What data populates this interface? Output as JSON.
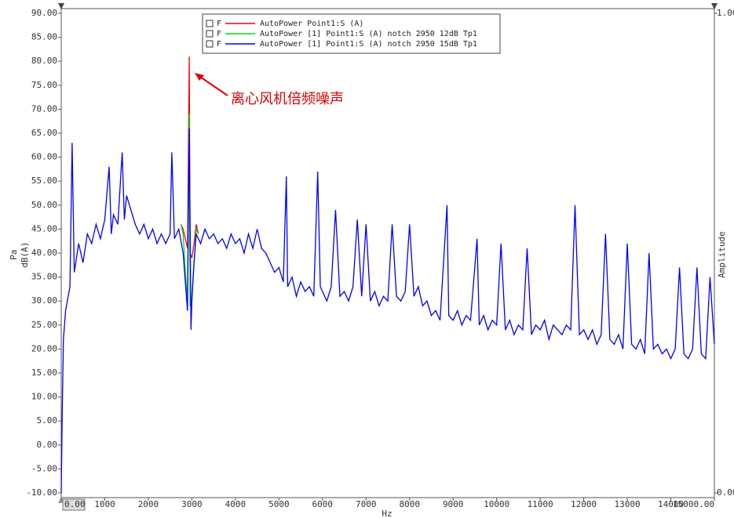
{
  "chart_data": {
    "type": "line",
    "x_label": "Hz",
    "y_label_unit": "Pa",
    "y_label": "dB(A)",
    "y2_label": "Amplitude",
    "annotation": "离心风机倍频噪声",
    "legend_flag": "F",
    "xlim": [
      0,
      15000
    ],
    "xticks": [
      {
        "value": 0,
        "label": "0.00"
      },
      1000,
      2000,
      3000,
      4000,
      5000,
      6000,
      7000,
      8000,
      9000,
      10000,
      11000,
      12000,
      13000,
      14000,
      {
        "value": 15000,
        "label": "15000.00"
      }
    ],
    "ylim": [
      -10,
      90
    ],
    "yticks": [
      {
        "value": 90,
        "label": "90.00"
      },
      {
        "value": 85,
        "label": "85.00"
      },
      {
        "value": 80,
        "label": "80.00"
      },
      {
        "value": 75,
        "label": "75.00"
      },
      {
        "value": 70,
        "label": "70.00"
      },
      {
        "value": 65,
        "label": "65.00"
      },
      {
        "value": 60,
        "label": "60.00"
      },
      {
        "value": 55,
        "label": "55.00"
      },
      {
        "value": 50,
        "label": "50.00"
      },
      {
        "value": 45,
        "label": "45.00"
      },
      {
        "value": 40,
        "label": "40.00"
      },
      {
        "value": 35,
        "label": "35.00"
      },
      {
        "value": 30,
        "label": "30.00"
      },
      {
        "value": 25,
        "label": "25.00"
      },
      {
        "value": 20,
        "label": "20.00"
      },
      {
        "value": 15,
        "label": "15.00"
      },
      {
        "value": 10,
        "label": "10.00"
      },
      {
        "value": 5,
        "label": "5.00"
      },
      {
        "value": 0,
        "label": "0.00"
      },
      {
        "value": -5,
        "label": "-5.00"
      },
      {
        "value": -10,
        "label": "-10.00"
      }
    ],
    "y2lim": [
      0,
      1
    ],
    "y2ticks": [
      {
        "value": 1,
        "label": "1.00"
      },
      {
        "value": 0,
        "label": "0.00"
      }
    ],
    "grid": false,
    "series": [
      {
        "name": "AutoPower Point1:S (A)",
        "color": "#ff0000",
        "x": [
          2750,
          2800,
          2850,
          2900,
          2940,
          2960,
          3000,
          3050,
          3100,
          3150
        ],
        "values": [
          46,
          45,
          43,
          41,
          81,
          40,
          39,
          42,
          46,
          44
        ]
      },
      {
        "name": "AutoPower [1] Point1:S (A) notch 2950 12dB Tp1",
        "color": "#00dd00",
        "x": [
          2750,
          2800,
          2850,
          2900,
          2940,
          2960,
          3000,
          3050,
          3100,
          3150
        ],
        "values": [
          46,
          44,
          36,
          30,
          69,
          29,
          31,
          38,
          45,
          44
        ]
      },
      {
        "name": "AutoPower [1] Point1:S (A) notch 2950 15dB Tp1",
        "color": "#0000ff",
        "x": [
          0,
          20,
          50,
          100,
          200,
          250,
          300,
          400,
          500,
          600,
          700,
          800,
          900,
          1000,
          1100,
          1150,
          1200,
          1300,
          1400,
          1450,
          1500,
          1600,
          1700,
          1800,
          1900,
          2000,
          2100,
          2200,
          2300,
          2400,
          2500,
          2540,
          2600,
          2700,
          2800,
          2850,
          2900,
          2940,
          2980,
          3000,
          3050,
          3100,
          3200,
          3300,
          3400,
          3500,
          3600,
          3700,
          3800,
          3900,
          4000,
          4100,
          4200,
          4300,
          4400,
          4500,
          4600,
          4700,
          4800,
          4900,
          5000,
          5100,
          5170,
          5200,
          5300,
          5400,
          5500,
          5600,
          5700,
          5800,
          5890,
          5950,
          6000,
          6100,
          6200,
          6300,
          6400,
          6500,
          6600,
          6700,
          6800,
          6900,
          7000,
          7100,
          7200,
          7300,
          7400,
          7500,
          7600,
          7700,
          7800,
          7900,
          8000,
          8100,
          8200,
          8300,
          8400,
          8500,
          8600,
          8700,
          8860,
          8900,
          9000,
          9100,
          9200,
          9300,
          9400,
          9550,
          9600,
          9700,
          9800,
          9900,
          10000,
          10100,
          10200,
          10300,
          10400,
          10500,
          10600,
          10700,
          10800,
          10900,
          11000,
          11100,
          11200,
          11300,
          11400,
          11500,
          11600,
          11700,
          11800,
          11900,
          12000,
          12100,
          12200,
          12300,
          12400,
          12500,
          12600,
          12700,
          12800,
          12900,
          13000,
          13100,
          13200,
          13300,
          13400,
          13500,
          13600,
          13700,
          13800,
          13900,
          14000,
          14100,
          14200,
          14300,
          14400,
          14500,
          14600,
          14700,
          14800,
          14900,
          15000
        ],
        "values": [
          -10,
          5,
          22,
          28,
          33,
          63,
          36,
          42,
          38,
          44,
          42,
          46,
          43,
          47,
          58,
          44,
          48,
          46,
          61,
          47,
          52,
          49,
          46,
          44,
          46,
          43,
          45,
          42,
          44,
          42,
          44,
          61,
          43,
          45,
          40,
          34,
          28,
          66,
          24,
          30,
          38,
          44,
          42,
          45,
          43,
          44,
          42,
          43,
          41,
          44,
          42,
          43,
          40,
          44,
          41,
          45,
          41,
          40,
          38,
          36,
          37,
          34,
          56,
          33,
          35,
          31,
          34,
          32,
          33,
          31,
          57,
          33,
          32,
          30,
          33,
          49,
          31,
          32,
          30,
          33,
          47,
          31,
          46,
          30,
          32,
          29,
          31,
          30,
          46,
          31,
          30,
          32,
          46,
          31,
          33,
          29,
          30,
          27,
          28,
          26,
          50,
          27,
          26,
          28,
          25,
          27,
          26,
          43,
          25,
          27,
          24,
          26,
          25,
          42,
          24,
          26,
          23,
          25,
          24,
          41,
          23,
          25,
          24,
          26,
          22,
          25,
          24,
          23,
          25,
          24,
          50,
          23,
          24,
          22,
          24,
          21,
          23,
          44,
          22,
          21,
          23,
          20,
          42,
          21,
          20,
          22,
          19,
          40,
          20,
          21,
          19,
          20,
          18,
          20,
          37,
          19,
          18,
          20,
          37,
          19,
          18,
          35,
          21
        ]
      }
    ]
  }
}
